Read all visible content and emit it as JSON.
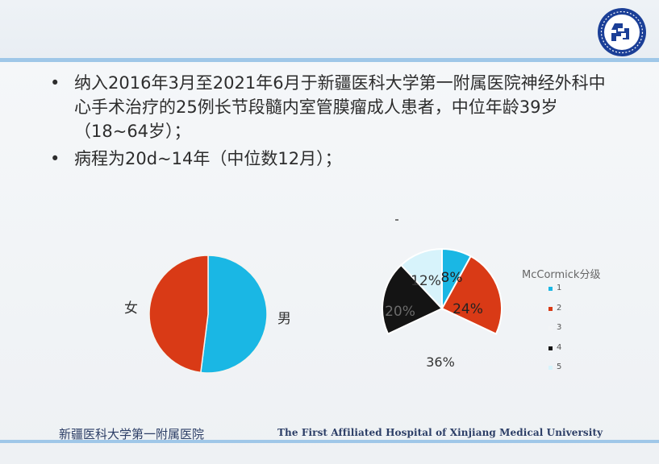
{
  "bullets": [
    "纳入2016年3月至2021年6月于新疆医科大学第一附属医院神经外科中心手术治疗的25例长节段髓内室管膜瘤成人患者，中位年龄39岁（18~64岁）；",
    "病程为20d~14年（中位数12月）；"
  ],
  "bullet_symbol": "•",
  "footer": {
    "left": "新疆医科大学第一附属医院",
    "right": "The First Affiliated Hospital of Xinjiang Medical University"
  },
  "chart_data": [
    {
      "type": "pie",
      "categories": [
        "男",
        "女"
      ],
      "values": [
        52,
        48
      ],
      "colors": [
        "#1ab7e4",
        "#d93a16"
      ],
      "title": ""
    },
    {
      "type": "pie",
      "legend_title": "McCormick分级",
      "legend_position": "right",
      "categories": [
        "1",
        "2",
        "3",
        "4",
        "5"
      ],
      "values": [
        8,
        24,
        36,
        20,
        12
      ],
      "labels": [
        "8%",
        "24%",
        "36%",
        "20%",
        "12%"
      ],
      "colors": [
        "#1ab7e4",
        "#d93a16",
        "#f2f4f6",
        "#141414",
        "#d7f3fb"
      ]
    }
  ]
}
